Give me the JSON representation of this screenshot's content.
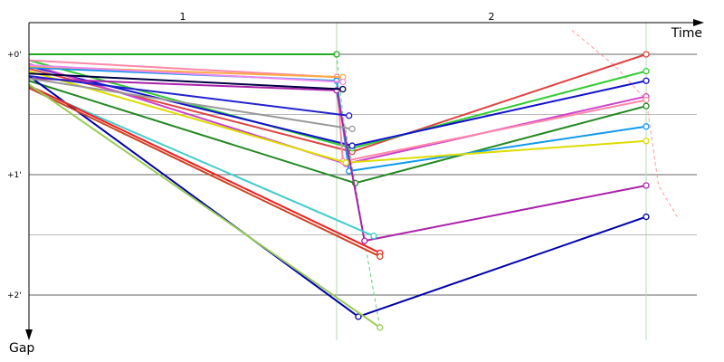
{
  "chart_data": {
    "type": "line",
    "title": "",
    "xlabel": "Time",
    "ylabel": "Gap",
    "lap_labels": [
      "1",
      "2"
    ],
    "y_ticks": [
      {
        "value": 0,
        "label": "+0'"
      },
      {
        "value": 1,
        "label": "+1'"
      },
      {
        "value": 2,
        "label": "+2'"
      }
    ],
    "ylim": [
      -0.23,
      2.4
    ],
    "grid": true,
    "series": [
      {
        "color": "#22aa22",
        "points": [
          [
            0.0,
            0.0
          ],
          [
            1.0,
            0.0
          ]
        ]
      },
      {
        "color": "#dd4444",
        "points": [
          [
            0.0,
            0.12
          ],
          [
            1.05,
            0.81
          ],
          [
            2.0,
            0.0
          ]
        ]
      },
      {
        "color": "#33cc33",
        "points": [
          [
            0.0,
            0.05
          ],
          [
            1.05,
            0.78
          ],
          [
            2.0,
            0.14
          ]
        ]
      },
      {
        "color": "#1111cc",
        "points": [
          [
            0.0,
            0.1
          ],
          [
            1.05,
            0.76
          ],
          [
            2.0,
            0.22
          ]
        ]
      },
      {
        "color": "#cc44cc",
        "points": [
          [
            0.0,
            0.08
          ],
          [
            1.03,
            0.91
          ],
          [
            2.0,
            0.35
          ]
        ]
      },
      {
        "color": "#ff88aa",
        "points": [
          [
            0.0,
            0.05
          ],
          [
            1.0,
            0.19
          ],
          [
            1.02,
            0.89
          ],
          [
            2.0,
            0.38
          ]
        ]
      },
      {
        "color": "#228822",
        "points": [
          [
            0.0,
            0.22
          ],
          [
            1.06,
            1.07
          ],
          [
            2.0,
            0.43
          ]
        ]
      },
      {
        "color": "#1199ee",
        "points": [
          [
            0.0,
            0.11
          ],
          [
            1.0,
            0.22
          ],
          [
            1.04,
            0.97
          ],
          [
            2.0,
            0.6
          ]
        ]
      },
      {
        "color": "#dddd00",
        "points": [
          [
            0.0,
            0.14
          ],
          [
            1.03,
            0.9
          ],
          [
            2.0,
            0.72
          ]
        ]
      },
      {
        "color": "#aa22aa",
        "points": [
          [
            0.0,
            0.2
          ],
          [
            1.0,
            0.3
          ],
          [
            1.09,
            1.55
          ],
          [
            2.0,
            1.09
          ]
        ]
      },
      {
        "color": "#0000aa",
        "points": [
          [
            0.0,
            0.18
          ],
          [
            1.07,
            2.18
          ],
          [
            2.0,
            1.35
          ]
        ]
      },
      {
        "color": "#ffaa44",
        "points": [
          [
            0.0,
            0.1
          ],
          [
            1.02,
            0.19
          ]
        ]
      },
      {
        "color": "#ee88ee",
        "points": [
          [
            0.0,
            0.09
          ],
          [
            1.02,
            0.23
          ]
        ]
      },
      {
        "color": "#000044",
        "points": [
          [
            0.0,
            0.16
          ],
          [
            1.02,
            0.29
          ]
        ]
      },
      {
        "color": "#2222cc",
        "points": [
          [
            0.0,
            0.18
          ],
          [
            1.04,
            0.51
          ]
        ]
      },
      {
        "color": "#999999",
        "points": [
          [
            0.0,
            0.2
          ],
          [
            1.05,
            0.62
          ]
        ]
      },
      {
        "color": "#44cccc",
        "points": [
          [
            0.0,
            0.27
          ],
          [
            1.12,
            1.51
          ]
        ]
      },
      {
        "color": "#ee2222",
        "points": [
          [
            0.0,
            0.26
          ],
          [
            1.14,
            1.65
          ]
        ]
      },
      {
        "color": "#cc4422",
        "points": [
          [
            0.0,
            0.28
          ],
          [
            1.14,
            1.68
          ]
        ]
      },
      {
        "color": "#99cc55",
        "points": [
          [
            0.0,
            0.25
          ],
          [
            1.14,
            2.27
          ]
        ]
      }
    ]
  }
}
